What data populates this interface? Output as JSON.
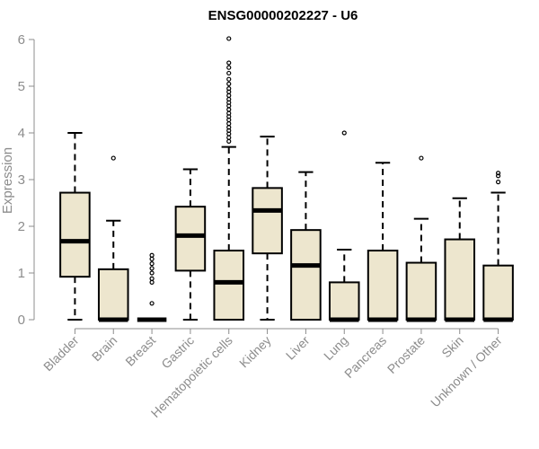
{
  "chart_data": {
    "type": "boxplot",
    "title": "ENSG00000202227 - U6",
    "ylabel": "Expression",
    "xlabel": "",
    "ylim": [
      0,
      6
    ],
    "yticks": [
      0,
      1,
      2,
      3,
      4,
      5,
      6
    ],
    "box_fill": "#ede6ce",
    "categories": [
      "Bladder",
      "Brain",
      "Breast",
      "Gastric",
      "Hematopoietic cells",
      "Kidney",
      "Liver",
      "Lung",
      "Pancreas",
      "Prostate",
      "Skin",
      "Unknown / Other"
    ],
    "boxes": [
      {
        "min": 0,
        "q1": 0.92,
        "median": 1.68,
        "q3": 2.72,
        "max": 4.0,
        "outliers": []
      },
      {
        "min": 0,
        "q1": 0,
        "median": 0,
        "q3": 1.08,
        "max": 2.12,
        "outliers": [
          3.46
        ]
      },
      {
        "min": 0,
        "q1": 0,
        "median": 0,
        "q3": 0,
        "max": 0,
        "outliers": [
          0.35,
          0.8,
          0.88,
          1.0,
          1.1,
          1.2,
          1.3,
          1.38
        ]
      },
      {
        "min": 0,
        "q1": 1.05,
        "median": 1.8,
        "q3": 2.42,
        "max": 3.22,
        "outliers": []
      },
      {
        "min": 0,
        "q1": 0,
        "median": 0.8,
        "q3": 1.48,
        "max": 3.7,
        "outliers": [
          3.82,
          3.9,
          3.98,
          4.05,
          4.12,
          4.2,
          4.28,
          4.35,
          4.42,
          4.5,
          4.58,
          4.65,
          4.72,
          4.8,
          4.88,
          4.95,
          5.05,
          5.15,
          5.28,
          5.4,
          5.5,
          6.02
        ]
      },
      {
        "min": 0,
        "q1": 1.42,
        "median": 2.34,
        "q3": 2.82,
        "max": 3.92,
        "outliers": []
      },
      {
        "min": 0,
        "q1": 0,
        "median": 1.16,
        "q3": 1.92,
        "max": 3.16,
        "outliers": []
      },
      {
        "min": 0,
        "q1": 0,
        "median": 0,
        "q3": 0.8,
        "max": 1.5,
        "outliers": [
          4.0
        ]
      },
      {
        "min": 0,
        "q1": 0,
        "median": 0,
        "q3": 1.48,
        "max": 3.36,
        "outliers": []
      },
      {
        "min": 0,
        "q1": 0,
        "median": 0,
        "q3": 1.22,
        "max": 2.16,
        "outliers": [
          3.46
        ]
      },
      {
        "min": 0,
        "q1": 0,
        "median": 0,
        "q3": 1.72,
        "max": 2.6,
        "outliers": []
      },
      {
        "min": 0,
        "q1": 0,
        "median": 0,
        "q3": 1.16,
        "max": 2.72,
        "outliers": [
          2.95,
          3.08,
          3.14
        ]
      }
    ]
  }
}
